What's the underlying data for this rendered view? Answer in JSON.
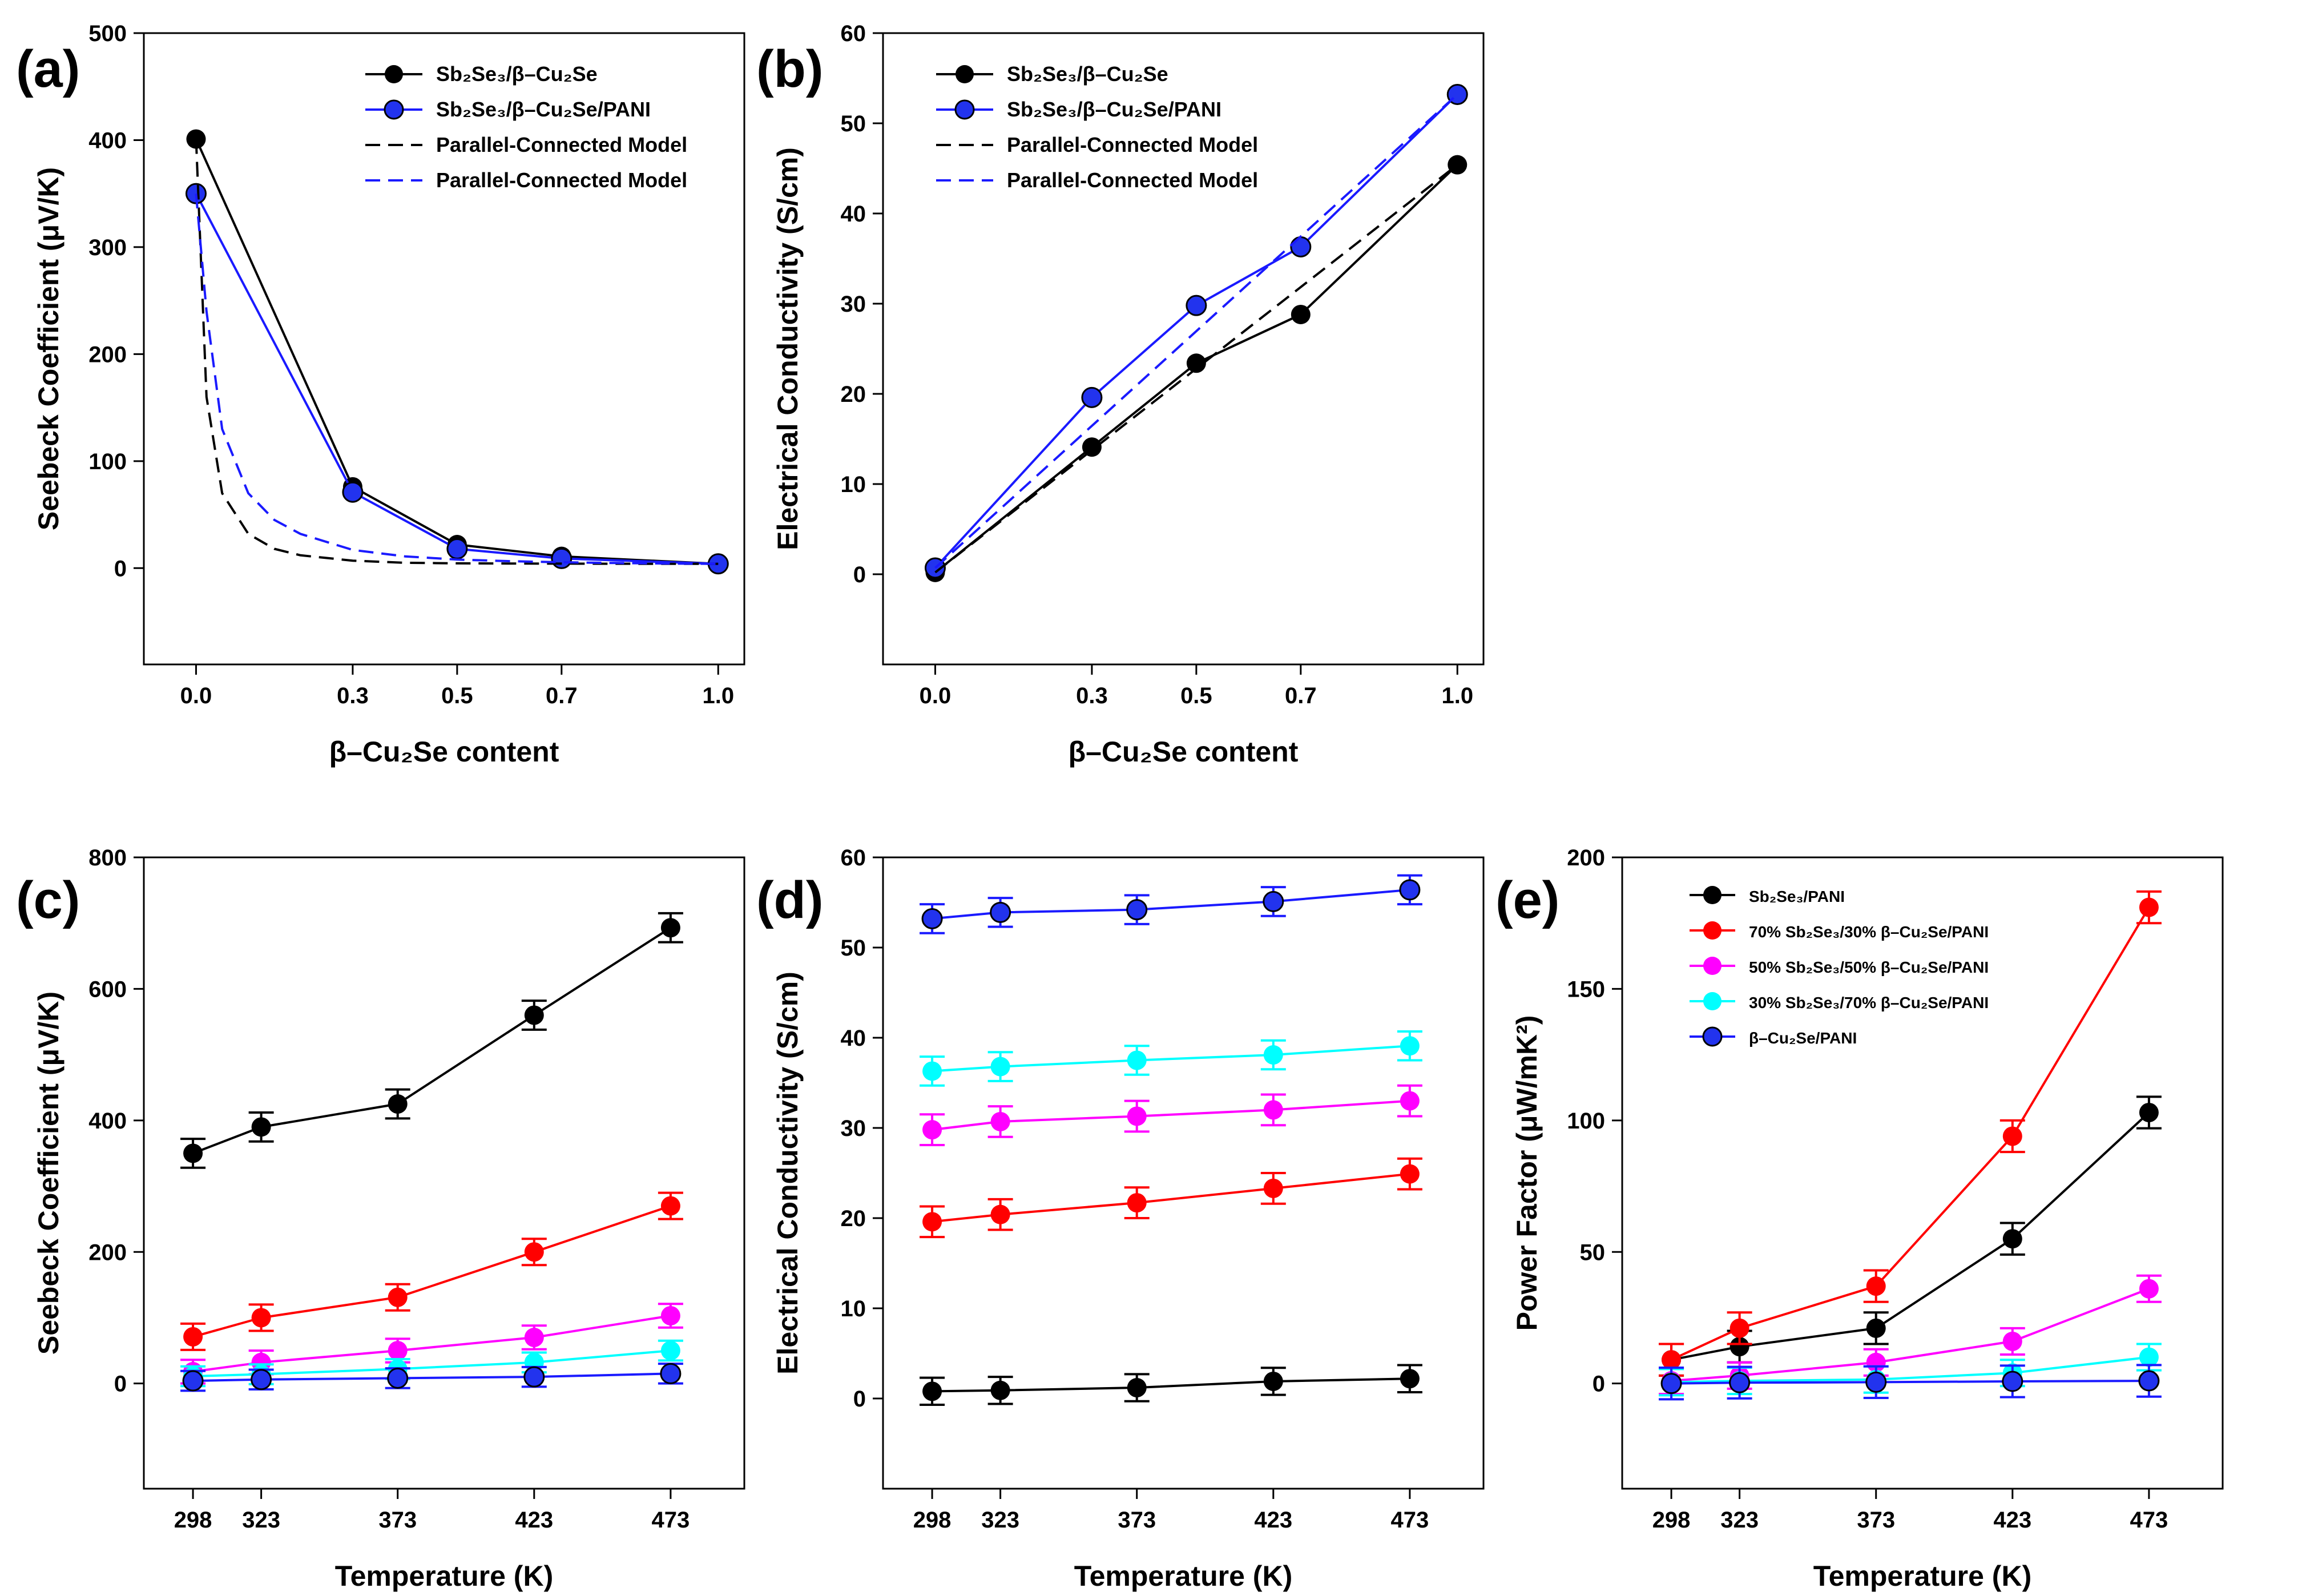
{
  "colors": {
    "black": "#000000",
    "blue": "#1a1aff",
    "red": "#ff0000",
    "magenta": "#ff00ff",
    "cyan": "#00ffff",
    "marker_blue": "#2233ee"
  },
  "chart_data": [
    {
      "id": "a",
      "panel_label": "(a)",
      "type": "line",
      "xlabel": "β–Cu₂Se content",
      "ylabel": "Seebeck Coefficient (μV/K)",
      "xlim": [
        -0.1,
        1.05
      ],
      "ylim": [
        -90,
        500
      ],
      "xticks": [
        0.0,
        0.3,
        0.5,
        0.7,
        1.0
      ],
      "xtick_labels": [
        "0.0",
        "0.3",
        "0.5",
        "0.7",
        "1.0"
      ],
      "yticks": [
        0,
        100,
        200,
        300,
        400,
        500
      ],
      "ytick_labels": [
        "0",
        "100",
        "200",
        "300",
        "400",
        "500"
      ],
      "legend_position": "top-right",
      "series": [
        {
          "name": "Sb₂Se₃/β–Cu₂Se",
          "color": "#000000",
          "style": "solid",
          "marker": true,
          "x": [
            0.0,
            0.3,
            0.5,
            0.7,
            1.0
          ],
          "y": [
            401,
            76,
            22,
            11,
            4
          ]
        },
        {
          "name": "Sb₂Se₃/β–Cu₂Se/PANI",
          "color": "#1a1aff",
          "style": "solid",
          "marker": true,
          "x": [
            0.0,
            0.3,
            0.5,
            0.7,
            1.0
          ],
          "y": [
            350,
            71,
            18,
            9,
            4
          ]
        },
        {
          "name": "Parallel-Connected Model",
          "color": "#000000",
          "style": "dashed",
          "marker": false,
          "x": [
            0.0,
            0.02,
            0.05,
            0.1,
            0.15,
            0.2,
            0.3,
            0.4,
            0.5,
            0.6,
            0.7,
            0.8,
            0.9,
            1.0
          ],
          "y": [
            401,
            160,
            70,
            32,
            18,
            12,
            7,
            5,
            4.5,
            4.3,
            4.2,
            4.1,
            4,
            4
          ]
        },
        {
          "name": "Parallel-Connected Model",
          "color": "#1a1aff",
          "style": "dashed",
          "marker": false,
          "x": [
            0.0,
            0.02,
            0.05,
            0.1,
            0.15,
            0.2,
            0.3,
            0.4,
            0.5,
            0.6,
            0.7,
            0.8,
            0.9,
            1.0
          ],
          "y": [
            350,
            240,
            130,
            70,
            45,
            32,
            17,
            11,
            8,
            6.5,
            5.5,
            4.8,
            4.3,
            4
          ]
        }
      ]
    },
    {
      "id": "b",
      "panel_label": "(b)",
      "type": "line",
      "xlabel": "β–Cu₂Se content",
      "ylabel": "Electrical Conductivity (S/cm)",
      "xlim": [
        -0.1,
        1.05
      ],
      "ylim": [
        -10,
        60
      ],
      "xticks": [
        0.0,
        0.3,
        0.5,
        0.7,
        1.0
      ],
      "xtick_labels": [
        "0.0",
        "0.3",
        "0.5",
        "0.7",
        "1.0"
      ],
      "yticks": [
        0,
        10,
        20,
        30,
        40,
        50,
        60
      ],
      "ytick_labels": [
        "0",
        "10",
        "20",
        "30",
        "40",
        "50",
        "60"
      ],
      "legend_position": "top-left",
      "series": [
        {
          "name": "Sb₂Se₃/β–Cu₂Se",
          "color": "#000000",
          "style": "solid",
          "marker": true,
          "x": [
            0.0,
            0.3,
            0.5,
            0.7,
            1.0
          ],
          "y": [
            0.2,
            14.1,
            23.4,
            28.8,
            45.4
          ]
        },
        {
          "name": "Sb₂Se₃/β–Cu₂Se/PANI",
          "color": "#1a1aff",
          "style": "solid",
          "marker": true,
          "x": [
            0.0,
            0.3,
            0.5,
            0.7,
            1.0
          ],
          "y": [
            0.7,
            19.6,
            29.8,
            36.3,
            53.2
          ]
        },
        {
          "name": "Parallel-Connected Model",
          "color": "#000000",
          "style": "dashed",
          "marker": false,
          "x": [
            0.0,
            1.0
          ],
          "y": [
            0.2,
            45.4
          ]
        },
        {
          "name": "Parallel-Connected Model",
          "color": "#1a1aff",
          "style": "dashed",
          "marker": false,
          "x": [
            0.0,
            1.0
          ],
          "y": [
            0.7,
            53.2
          ]
        }
      ]
    },
    {
      "id": "c",
      "panel_label": "(c)",
      "type": "line",
      "xlabel": "Temperature (K)",
      "ylabel": "Seebeck Coefficient (μV/K)",
      "xlim": [
        280,
        500
      ],
      "ylim": [
        -160,
        800
      ],
      "xticks": [
        298,
        323,
        373,
        423,
        473
      ],
      "xtick_labels": [
        "298",
        "323",
        "373",
        "423",
        "473"
      ],
      "yticks": [
        0,
        200,
        400,
        600,
        800
      ],
      "ytick_labels": [
        "0",
        "200",
        "400",
        "600",
        "800"
      ],
      "legend_position": "none",
      "series": [
        {
          "name": "Sb₂Se₃/PANI",
          "color": "#000000",
          "marker": true,
          "errorbar": 22,
          "x": [
            298,
            323,
            373,
            423,
            473
          ],
          "y": [
            350,
            390,
            425,
            560,
            693
          ]
        },
        {
          "name": "70% Sb₂Se₃/30% β–Cu₂Se/PANI",
          "color": "#ff0000",
          "marker": true,
          "errorbar": 20,
          "x": [
            298,
            323,
            373,
            423,
            473
          ],
          "y": [
            71,
            100,
            131,
            200,
            270
          ]
        },
        {
          "name": "50% Sb₂Se₃/50% β–Cu₂Se/PANI",
          "color": "#ff00ff",
          "marker": true,
          "errorbar": 18,
          "x": [
            298,
            323,
            373,
            423,
            473
          ],
          "y": [
            18,
            32,
            50,
            70,
            103
          ]
        },
        {
          "name": "30% Sb₂Se₃/70% β–Cu₂Se/PANI",
          "color": "#00ffff",
          "marker": true,
          "errorbar": 15,
          "x": [
            298,
            323,
            373,
            423,
            473
          ],
          "y": [
            11,
            14,
            22,
            32,
            50
          ]
        },
        {
          "name": "β–Cu₂Se/PANI",
          "color": "#1a1aff",
          "marker": true,
          "errorbar": 15,
          "x": [
            298,
            323,
            373,
            423,
            473
          ],
          "y": [
            4,
            6,
            8,
            10,
            15
          ]
        }
      ]
    },
    {
      "id": "d",
      "panel_label": "(d)",
      "type": "line",
      "xlabel": "Temperature (K)",
      "ylabel": "Electrical Conductivity (S/cm)",
      "xlim": [
        280,
        500
      ],
      "ylim": [
        -10,
        60
      ],
      "xticks": [
        298,
        323,
        373,
        423,
        473
      ],
      "xtick_labels": [
        "298",
        "323",
        "373",
        "423",
        "473"
      ],
      "yticks": [
        0,
        10,
        20,
        30,
        40,
        50,
        60
      ],
      "ytick_labels": [
        "0",
        "10",
        "20",
        "30",
        "40",
        "50",
        "60"
      ],
      "legend_position": "none",
      "series": [
        {
          "name": "Sb₂Se₃/PANI",
          "color": "#000000",
          "marker": true,
          "errorbar": 1.5,
          "x": [
            298,
            323,
            373,
            423,
            473
          ],
          "y": [
            0.8,
            0.9,
            1.2,
            1.9,
            2.2
          ]
        },
        {
          "name": "70% Sb₂Se₃/30% β–Cu₂Se/PANI",
          "color": "#ff0000",
          "marker": true,
          "errorbar": 1.7,
          "x": [
            298,
            323,
            373,
            423,
            473
          ],
          "y": [
            19.6,
            20.4,
            21.7,
            23.3,
            24.9
          ]
        },
        {
          "name": "50% Sb₂Se₃/50% β–Cu₂Se/PANI",
          "color": "#ff00ff",
          "marker": true,
          "errorbar": 1.7,
          "x": [
            298,
            323,
            373,
            423,
            473
          ],
          "y": [
            29.8,
            30.7,
            31.3,
            32.0,
            33.0
          ]
        },
        {
          "name": "30% Sb₂Se₃/70% β–Cu₂Se/PANI",
          "color": "#00ffff",
          "marker": true,
          "errorbar": 1.6,
          "x": [
            298,
            323,
            373,
            423,
            473
          ],
          "y": [
            36.3,
            36.8,
            37.5,
            38.1,
            39.1
          ]
        },
        {
          "name": "β–Cu₂Se/PANI",
          "color": "#1a1aff",
          "marker": true,
          "errorbar": 1.6,
          "x": [
            298,
            323,
            373,
            423,
            473
          ],
          "y": [
            53.2,
            53.9,
            54.2,
            55.1,
            56.4
          ]
        }
      ]
    },
    {
      "id": "e",
      "panel_label": "(e)",
      "type": "line",
      "xlabel": "Temperature (K)",
      "ylabel": "Power Factor (μW/mK²)",
      "xlim": [
        280,
        500
      ],
      "ylim": [
        -40,
        200
      ],
      "xticks": [
        298,
        323,
        373,
        423,
        473
      ],
      "xtick_labels": [
        "298",
        "323",
        "373",
        "423",
        "473"
      ],
      "yticks": [
        0,
        50,
        100,
        150,
        200
      ],
      "ytick_labels": [
        "0",
        "50",
        "100",
        "150",
        "200"
      ],
      "legend_position": "top-left",
      "series": [
        {
          "name": "Sb₂Se₃/PANI",
          "color": "#000000",
          "marker": true,
          "errorbar": 6,
          "x": [
            298,
            323,
            373,
            423,
            473
          ],
          "y": [
            9,
            14,
            21,
            55,
            103
          ]
        },
        {
          "name": "70% Sb₂Se₃/30% β–Cu₂Se/PANI",
          "color": "#ff0000",
          "marker": true,
          "errorbar": 6,
          "x": [
            298,
            323,
            373,
            423,
            473
          ],
          "y": [
            9,
            21,
            37,
            94,
            181
          ]
        },
        {
          "name": "50% Sb₂Se₃/50% β–Cu₂Se/PANI",
          "color": "#ff00ff",
          "marker": true,
          "errorbar": 5,
          "x": [
            298,
            323,
            373,
            423,
            473
          ],
          "y": [
            1,
            3,
            8,
            16,
            36
          ]
        },
        {
          "name": "30% Sb₂Se₃/70% β–Cu₂Se/PANI",
          "color": "#00ffff",
          "marker": true,
          "errorbar": 5,
          "x": [
            298,
            323,
            373,
            423,
            473
          ],
          "y": [
            0.5,
            1,
            1.5,
            4,
            10
          ]
        },
        {
          "name": "β–Cu₂Se/PANI",
          "color": "#1a1aff",
          "marker": true,
          "errorbar": 6,
          "x": [
            298,
            323,
            373,
            423,
            473
          ],
          "y": [
            0,
            0.3,
            0.5,
            0.8,
            1
          ]
        }
      ]
    }
  ]
}
